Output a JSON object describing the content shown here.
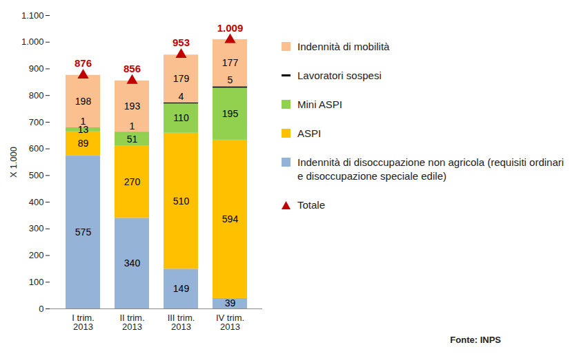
{
  "chart_data": {
    "type": "bar",
    "stacked": true,
    "data_labels": true,
    "grid": false,
    "legend": "right",
    "y_label": "X 1.000",
    "source": "Fonte: INPS",
    "categories": [
      "I trim.\n2013",
      "II trim.\n2013",
      "III trim.\n2013",
      "IV trim.\n2013"
    ],
    "ylim": [
      0,
      1100
    ],
    "yticks": [
      0,
      100,
      200,
      300,
      400,
      500,
      600,
      700,
      800,
      900,
      {
        "value": 1000,
        "label": "1.000"
      },
      {
        "value": 1100,
        "label": "1.100"
      }
    ],
    "series": [
      {
        "name": "Indennità di disoccupazione non agricola (requisiti ordinari e disoccupazione speciale edile)",
        "color": "#95B3D7",
        "values": [
          575,
          340,
          149,
          39
        ]
      },
      {
        "name": "ASPI",
        "color": "#FFC000",
        "values": [
          89,
          270,
          510,
          594
        ]
      },
      {
        "name": "Mini ASPI",
        "color": "#92D050",
        "values": [
          13,
          51,
          110,
          195
        ]
      },
      {
        "name": "Lavoratori sospesi",
        "color": "#000000",
        "values": [
          1,
          1,
          4,
          5
        ]
      },
      {
        "name": "Indennità di mobilità",
        "color": "#FAC090",
        "values": [
          198,
          193,
          179,
          177
        ]
      },
      {
        "name": "Totale",
        "type": "scatter",
        "marker": "triangle",
        "color": "#C00000",
        "values": [
          876,
          856,
          953,
          1009
        ],
        "value_labels": [
          "876",
          "856",
          "953",
          "1.009"
        ]
      }
    ]
  }
}
